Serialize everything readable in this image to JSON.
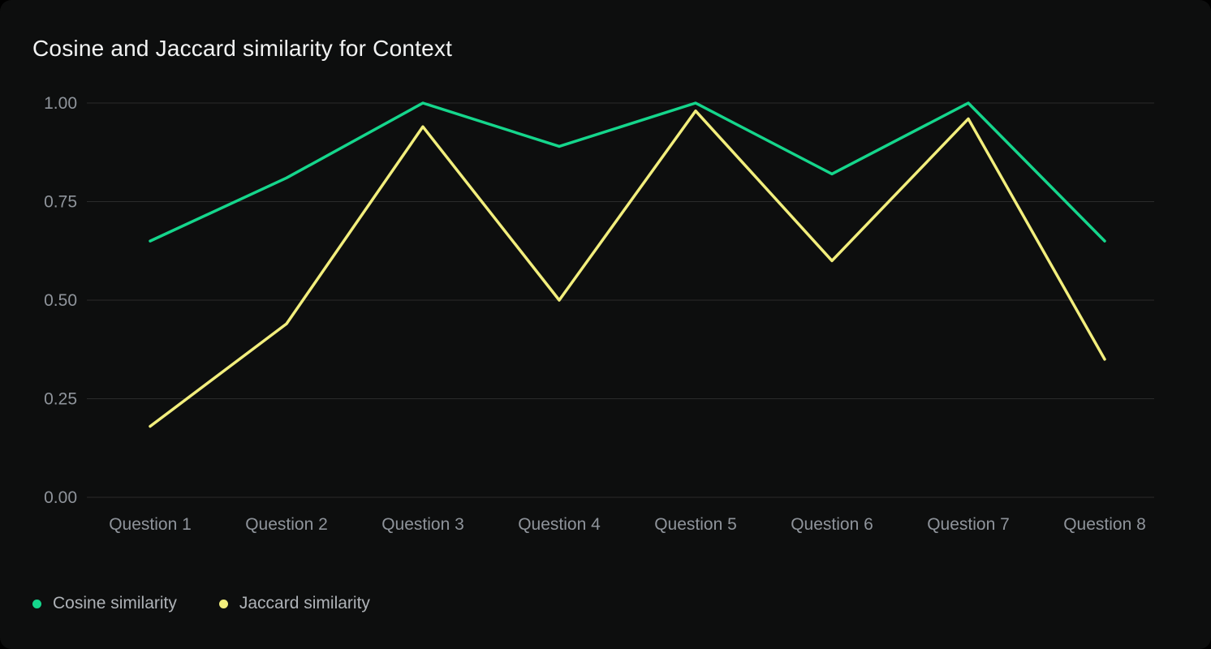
{
  "title": "Cosine and Jaccard similarity for Context",
  "colors": {
    "page_bg": "#000000",
    "card_bg": "#0d0e0e",
    "grid": "#2a2b2b",
    "axis_text": "#8f949b",
    "legend_text": "#aeb2b7",
    "title_text": "#f2f3f3",
    "cosine_series": "#15d68c",
    "jaccard_series": "#f2ee7c"
  },
  "chart_data": {
    "type": "line",
    "title": "Cosine and Jaccard similarity for Context",
    "categories": [
      "Question 1",
      "Question 2",
      "Question 3",
      "Question 4",
      "Question 5",
      "Question 6",
      "Question 7",
      "Question 8"
    ],
    "series": [
      {
        "name": "Cosine similarity",
        "color": "#15d68c",
        "values": [
          0.65,
          0.81,
          1.0,
          0.89,
          1.0,
          0.82,
          1.0,
          0.65
        ]
      },
      {
        "name": "Jaccard similarity",
        "color": "#f2ee7c",
        "values": [
          0.18,
          0.44,
          0.94,
          0.5,
          0.98,
          0.6,
          0.96,
          0.35
        ]
      }
    ],
    "xlabel": "",
    "ylabel": "",
    "ylim": [
      0,
      1
    ],
    "yticks": [
      1.0,
      0.75,
      0.5,
      0.25,
      0.0
    ],
    "ytick_labels": [
      "1.00",
      "0.75",
      "0.50",
      "0.25",
      "0.00"
    ],
    "grid": "horizontal",
    "legend_position": "bottom-left"
  }
}
